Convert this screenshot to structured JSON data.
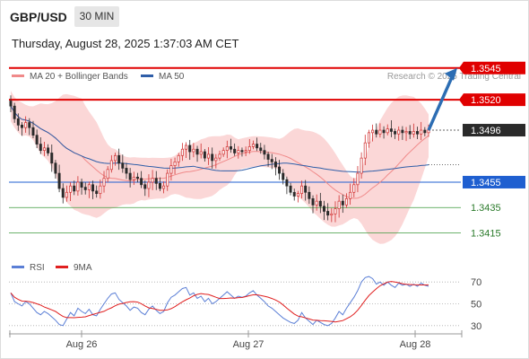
{
  "header": {
    "symbol": "GBP/USD",
    "timeframe": "30 MIN",
    "timestamp": "Thursday, August 28, 2025 1:37:03 AM CET"
  },
  "legend": {
    "bollinger_label": "MA 20 + Bollinger Bands",
    "bollinger_color": "#f08a8a",
    "ma50_label": "MA 50",
    "ma50_color": "#2f5ea8",
    "copyright": "Research © 2025 Trading Central"
  },
  "rsi_legend": {
    "rsi_label": "RSI",
    "rsi_color": "#5b7fd6",
    "ma_label": "9MA",
    "ma_color": "#e02020"
  },
  "colors": {
    "bull": "#d03030",
    "bear": "#2a2a2a",
    "band_fill": "#fbd7d7",
    "resistance": "#e00000",
    "support_strong": "#1f5fd0",
    "support": "#3c9a3c",
    "arrow": "#2c6db3"
  },
  "chart_data": [
    {
      "type": "candlestick",
      "title": "GBP/USD",
      "timeframe": "30 MIN",
      "x_ticks": [
        "Aug 26",
        "Aug 27",
        "Aug 28"
      ],
      "ylim": [
        1.339,
        1.356
      ],
      "last_price": 1.3496,
      "levels": [
        {
          "label": "1.3545",
          "value": 1.3545,
          "kind": "resistance"
        },
        {
          "label": "1.3520",
          "value": 1.352,
          "kind": "resistance"
        },
        {
          "label": "1.3496",
          "value": 1.3496,
          "kind": "last"
        },
        {
          "label": "1.3455",
          "value": 1.3455,
          "kind": "support-strong"
        },
        {
          "label": "1.3435",
          "value": 1.3435,
          "kind": "support"
        },
        {
          "label": "1.3415",
          "value": 1.3415,
          "kind": "support"
        }
      ],
      "forecast_arrow": {
        "from": 1.3496,
        "to": 1.3545
      },
      "close": [
        1.3515,
        1.3505,
        1.35,
        1.3498,
        1.3502,
        1.3498,
        1.3492,
        1.3485,
        1.348,
        1.3482,
        1.3478,
        1.347,
        1.3462,
        1.345,
        1.3443,
        1.3447,
        1.3452,
        1.3448,
        1.3455,
        1.3451,
        1.3449,
        1.3453,
        1.3448,
        1.3446,
        1.3452,
        1.3458,
        1.3465,
        1.3472,
        1.3476,
        1.347,
        1.3466,
        1.3462,
        1.3457,
        1.3459,
        1.3458,
        1.3453,
        1.345,
        1.3455,
        1.3458,
        1.3454,
        1.345,
        1.3452,
        1.3462,
        1.3468,
        1.3471,
        1.3476,
        1.3481,
        1.3484,
        1.3479,
        1.3481,
        1.3477,
        1.3479,
        1.3474,
        1.3477,
        1.3472,
        1.3474,
        1.3477,
        1.348,
        1.3483,
        1.3481,
        1.3478,
        1.348,
        1.3479,
        1.348,
        1.3483,
        1.3485,
        1.3482,
        1.348,
        1.3477,
        1.3473,
        1.3471,
        1.3467,
        1.3462,
        1.3457,
        1.3452,
        1.3447,
        1.3444,
        1.3446,
        1.3452,
        1.3447,
        1.3442,
        1.3437,
        1.344,
        1.3436,
        1.3432,
        1.3429,
        1.343,
        1.3434,
        1.344,
        1.3437,
        1.3442,
        1.3447,
        1.3453,
        1.3462,
        1.3474,
        1.3486,
        1.3494,
        1.3496,
        1.3493,
        1.3496,
        1.3494,
        1.3497,
        1.3495,
        1.3493,
        1.3496,
        1.3494,
        1.3495,
        1.3493,
        1.3495,
        1.3493,
        1.3496,
        1.3494,
        1.3496
      ]
    },
    {
      "type": "line",
      "title": "RSI",
      "series": [
        {
          "name": "RSI"
        },
        {
          "name": "9MA"
        }
      ],
      "ylim": [
        20,
        80
      ],
      "y_ticks": [
        30,
        50,
        70
      ],
      "rsi": [
        60,
        52,
        50,
        48,
        52,
        50,
        46,
        42,
        40,
        43,
        41,
        38,
        35,
        31,
        30,
        36,
        42,
        39,
        46,
        43,
        41,
        45,
        40,
        39,
        45,
        50,
        55,
        59,
        60,
        54,
        51,
        48,
        44,
        47,
        46,
        42,
        40,
        45,
        48,
        44,
        41,
        43,
        51,
        56,
        58,
        61,
        64,
        65,
        58,
        60,
        55,
        57,
        52,
        55,
        50,
        52,
        55,
        58,
        61,
        58,
        55,
        57,
        56,
        57,
        60,
        62,
        58,
        55,
        52,
        48,
        46,
        43,
        40,
        37,
        35,
        33,
        32,
        35,
        42,
        37,
        34,
        31,
        35,
        33,
        31,
        30,
        32,
        37,
        43,
        40,
        46,
        51,
        56,
        62,
        70,
        74,
        75,
        73,
        68,
        70,
        67,
        70,
        67,
        65,
        69,
        67,
        68,
        66,
        68,
        66,
        69,
        67,
        66
      ]
    }
  ]
}
